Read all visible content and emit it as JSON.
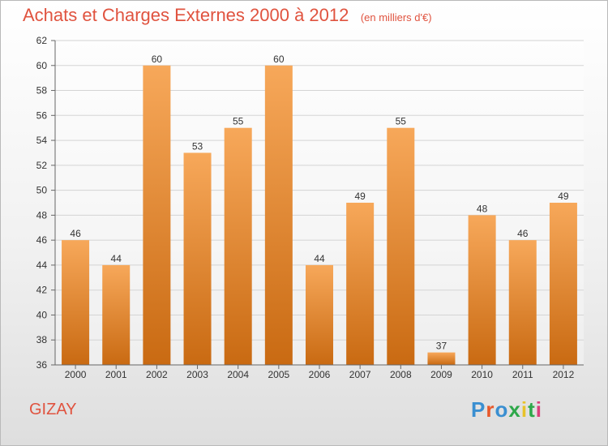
{
  "header": {
    "title": "Achats et Charges Externes 2000 à 2012",
    "unit": "(en milliers d'€)"
  },
  "commune": "GIZAY",
  "logo": {
    "text": "Proxiti",
    "letter_colors": [
      "#3a8fd1",
      "#e8582a",
      "#3a8fd1",
      "#2ea84a",
      "#e8c22a",
      "#2ea84a",
      "#d9407a"
    ]
  },
  "chart_data": {
    "type": "bar",
    "title": "Achats et Charges Externes 2000 à 2012",
    "subtitle": "(en milliers d'€)",
    "categories": [
      "2000",
      "2001",
      "2002",
      "2003",
      "2004",
      "2005",
      "2006",
      "2007",
      "2008",
      "2009",
      "2010",
      "2011",
      "2012"
    ],
    "values": [
      46,
      44,
      60,
      53,
      55,
      60,
      44,
      49,
      55,
      37,
      48,
      46,
      49
    ],
    "xlabel": "",
    "ylabel": "",
    "ylim": [
      36,
      62
    ],
    "yticks": [
      36,
      38,
      40,
      42,
      44,
      46,
      48,
      50,
      52,
      54,
      56,
      58,
      60,
      62
    ],
    "grid": true,
    "legend": "none",
    "bar_color_top": "#f7a85a",
    "bar_color_bottom": "#c96a12"
  }
}
